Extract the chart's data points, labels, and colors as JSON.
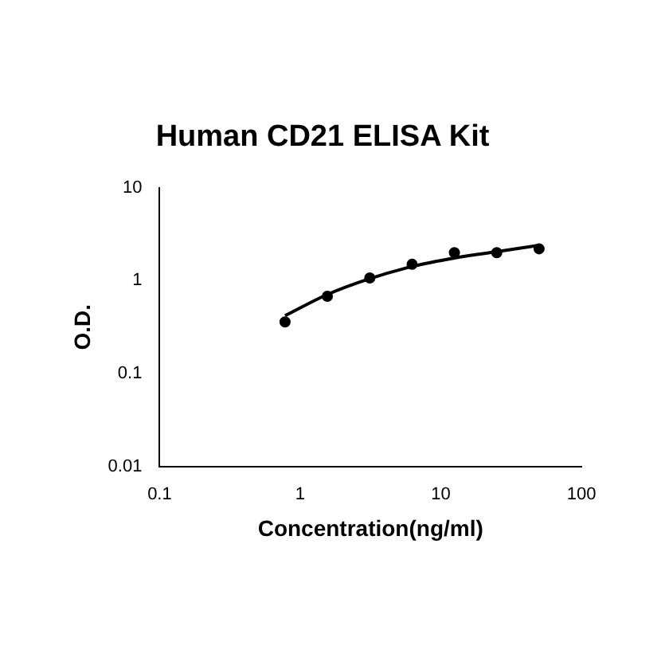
{
  "chart_data": {
    "type": "scatter",
    "title": "Human CD21 ELISA Kit",
    "xlabel": "Concentration(ng/ml)",
    "ylabel": "O.D.",
    "log": "xy",
    "xlim": [
      0.1,
      100
    ],
    "ylim": [
      0.01,
      10
    ],
    "xticks": [
      0.1,
      1,
      10,
      100
    ],
    "yticks": [
      0.01,
      0.1,
      1,
      10
    ],
    "grid": false,
    "legend": false,
    "marker": "circle",
    "series": [
      {
        "color": "#000000",
        "x": [
          0.78,
          1.56,
          3.125,
          6.25,
          12.5,
          25,
          50
        ],
        "values": [
          0.36,
          0.68,
          1.07,
          1.5,
          2.0,
          2.0,
          2.2
        ]
      },
      {
        "type": "line",
        "color": "#000000",
        "line_style": "solid",
        "marker": "none",
        "x": [
          0.78,
          1.56,
          3.125,
          6.25,
          12.5,
          25,
          50
        ],
        "values": [
          0.42,
          0.71,
          1.05,
          1.42,
          1.75,
          2.05,
          2.4
        ]
      }
    ]
  }
}
